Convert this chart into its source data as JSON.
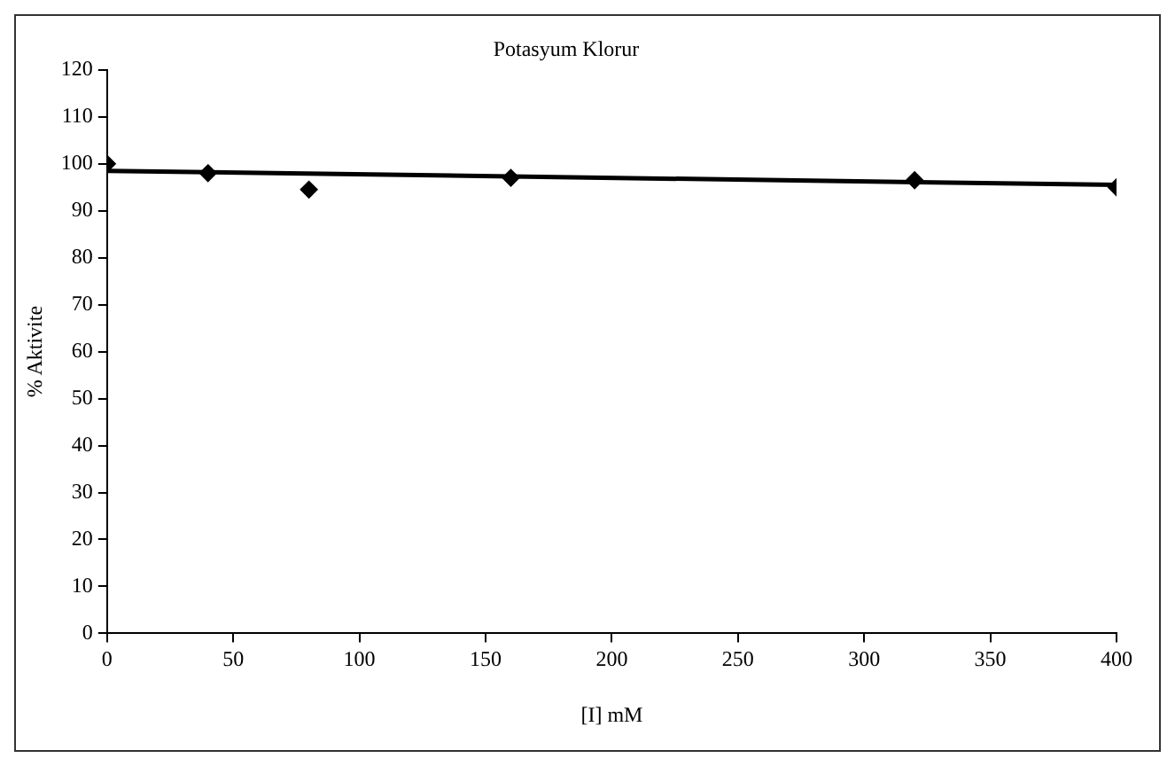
{
  "chart_data": {
    "type": "scatter",
    "title": "Potasyum Klorur",
    "xlabel": "[I] mM",
    "ylabel": "% Aktivite",
    "xlim": [
      0,
      400
    ],
    "xticks": [
      0,
      50,
      100,
      150,
      200,
      250,
      300,
      350,
      400
    ],
    "ylim": [
      0,
      120
    ],
    "yticks": [
      0,
      10,
      20,
      30,
      40,
      50,
      60,
      70,
      80,
      90,
      100,
      110,
      120
    ],
    "grid": false,
    "legend": false,
    "marker": "diamond",
    "series": [
      {
        "color": "#000000",
        "x": [
          0,
          40,
          80,
          160,
          320,
          400
        ],
        "values": [
          100,
          98,
          94.5,
          97,
          96.5,
          95
        ]
      },
      {
        "type": "line",
        "color": "#000000",
        "x": [
          0,
          400
        ],
        "values": [
          98.5,
          95.5
        ],
        "marker": "none",
        "line_style": "solid"
      }
    ]
  }
}
